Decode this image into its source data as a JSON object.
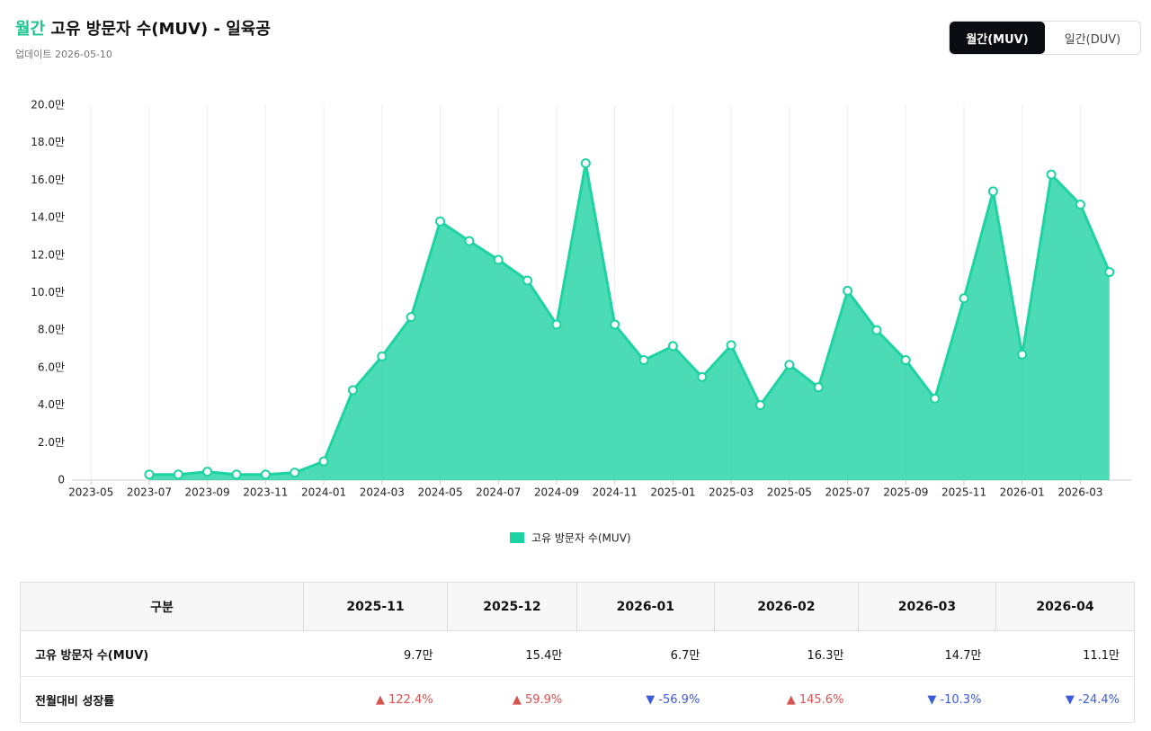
{
  "header": {
    "title_prefix": "월간",
    "title": "고유 방문자 수(MUV) - 일육공",
    "updated": "업데이트 2026-05-10",
    "toggle": [
      "월간(MUV)",
      "일간(DUV)"
    ]
  },
  "chart_data": {
    "type": "area",
    "categories": [
      "2023-05",
      null,
      "2023-07",
      null,
      "2023-09",
      null,
      "2023-11",
      null,
      "2024-01",
      null,
      "2024-03",
      null,
      "2024-05",
      null,
      "2024-07",
      null,
      "2024-09",
      null,
      "2024-11",
      null,
      "2025-01",
      null,
      "2025-03",
      null,
      "2025-05",
      null,
      "2025-07",
      null,
      "2025-09",
      null,
      "2025-11",
      null,
      "2026-01",
      null,
      "2026-03",
      null
    ],
    "series": [
      {
        "name": "고유 방문자 수(MUV)",
        "color": "#1ed3a3",
        "values": [
          null,
          null,
          0.3,
          0.3,
          0.45,
          0.3,
          0.3,
          0.4,
          1.0,
          4.8,
          6.6,
          8.7,
          13.8,
          12.75,
          11.75,
          10.65,
          8.3,
          16.9,
          8.3,
          6.4,
          7.15,
          5.5,
          7.2,
          4.0,
          6.15,
          4.95,
          10.1,
          8.0,
          6.4,
          4.35,
          9.7,
          15.4,
          6.7,
          16.3,
          14.7,
          11.1
        ]
      }
    ],
    "ylim": [
      0,
      20
    ],
    "yticks": [
      0,
      {
        "value": 2,
        "label": "2.0만"
      },
      {
        "value": 4,
        "label": "4.0만"
      },
      {
        "value": 6,
        "label": "6.0만"
      },
      {
        "value": 8,
        "label": "8.0만"
      },
      {
        "value": 10,
        "label": "10.0만"
      },
      {
        "value": 12,
        "label": "12.0만"
      },
      {
        "value": 14,
        "label": "14.0만"
      },
      {
        "value": 16,
        "label": "16.0만"
      },
      {
        "value": 18,
        "label": "18.0만"
      },
      {
        "value": 20,
        "label": "20.0만"
      }
    ],
    "grid": "x",
    "legend": "bottom"
  },
  "table": {
    "columns": [
      "구분",
      "2025-11",
      "2025-12",
      "2026-01",
      "2026-02",
      "2026-03",
      "2026-04"
    ],
    "rows": [
      [
        "고유 방문자 수(MUV)",
        "9.7만",
        "15.4만",
        "6.7만",
        "16.3만",
        "14.7만",
        "11.1만"
      ],
      [
        "전월대비 성장률",
        "▲ 122.4%",
        "▲ 59.9%",
        "▼ -56.9%",
        "▲ 145.6%",
        "▼ -10.3%",
        "▼ -24.4%"
      ]
    ]
  }
}
